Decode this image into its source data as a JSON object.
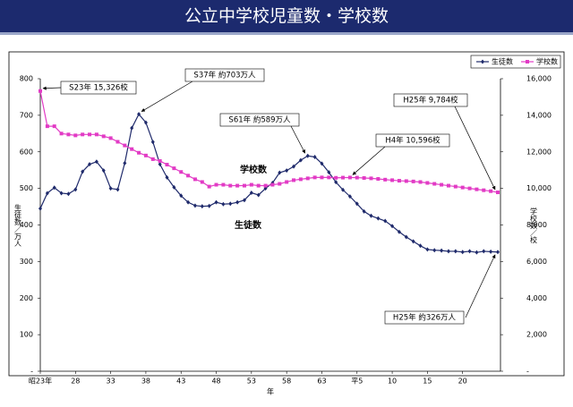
{
  "chart_data": {
    "type": "line",
    "title": "公立中学校児童数・学校数",
    "xlabel": "年",
    "ylabel": "生徒数／万人",
    "y2label": "学校数／校",
    "categories": [
      "昭23年",
      null,
      null,
      null,
      null,
      "28",
      null,
      null,
      null,
      null,
      "33",
      null,
      null,
      null,
      null,
      "38",
      null,
      null,
      null,
      null,
      "43",
      null,
      null,
      null,
      null,
      "48",
      null,
      null,
      null,
      null,
      "53",
      null,
      null,
      null,
      null,
      "58",
      null,
      null,
      null,
      null,
      "63",
      null,
      null,
      null,
      null,
      "平5",
      null,
      null,
      null,
      null,
      "10",
      null,
      null,
      null,
      null,
      "15",
      null,
      null,
      null,
      null,
      "20",
      null,
      null,
      null,
      null,
      null
    ],
    "series": [
      {
        "name": "生徒数",
        "color": "#1f2a6b",
        "marker": "diamond",
        "axis": "y",
        "values": [
          445,
          487,
          502,
          487,
          485,
          497,
          546,
          566,
          573,
          549,
          500,
          497,
          569,
          665,
          703,
          680,
          627,
          566,
          530,
          503,
          480,
          462,
          453,
          451,
          452,
          462,
          457,
          458,
          462,
          468,
          488,
          482,
          500,
          515,
          543,
          549,
          560,
          577,
          589,
          586,
          568,
          544,
          517,
          496,
          478,
          458,
          437,
          425,
          418,
          411,
          397,
          381,
          367,
          355,
          343,
          333,
          331,
          330,
          328,
          328,
          326,
          328,
          325,
          328,
          327,
          326
        ]
      },
      {
        "name": "学校数",
        "color": "#e23bc5",
        "marker": "square",
        "axis": "y2",
        "values": [
          15326,
          13400,
          13400,
          13000,
          12950,
          12900,
          12950,
          12950,
          12950,
          12850,
          12750,
          12550,
          12350,
          12150,
          11950,
          11800,
          11600,
          11500,
          11300,
          11100,
          10900,
          10700,
          10500,
          10350,
          10100,
          10200,
          10200,
          10150,
          10150,
          10150,
          10200,
          10150,
          10150,
          10200,
          10250,
          10350,
          10450,
          10500,
          10550,
          10600,
          10600,
          10600,
          10580,
          10590,
          10596,
          10590,
          10570,
          10550,
          10520,
          10480,
          10450,
          10420,
          10400,
          10380,
          10350,
          10300,
          10250,
          10200,
          10150,
          10100,
          10050,
          10000,
          9950,
          9900,
          9850,
          9784
        ]
      }
    ],
    "ylim": [
      0,
      800
    ],
    "yticks": [
      {
        "value": 0,
        "label": "-"
      },
      100,
      200,
      300,
      400,
      500,
      600,
      700,
      800
    ],
    "y2lim": [
      0,
      16000
    ],
    "y2ticks": [
      {
        "value": 0,
        "label": "-"
      },
      {
        "value": 2000,
        "label": "2,000"
      },
      {
        "value": 4000,
        "label": "4,000"
      },
      {
        "value": 6000,
        "label": "6,000"
      },
      {
        "value": 8000,
        "label": "8,000"
      },
      {
        "value": 10000,
        "label": "10,000"
      },
      {
        "value": 12000,
        "label": "12,000"
      },
      {
        "value": 14000,
        "label": "14,000"
      },
      {
        "value": 16000,
        "label": "16,000"
      }
    ],
    "legend": "top-right",
    "series_labels": [
      "生徒数",
      "学校数"
    ],
    "annotations": [
      "S23年  15,326校",
      "S37年  約703万人",
      "S61年  約589万人",
      "H4年  10,596校",
      "H25年  9,784校",
      "H25年  約326万人"
    ]
  }
}
